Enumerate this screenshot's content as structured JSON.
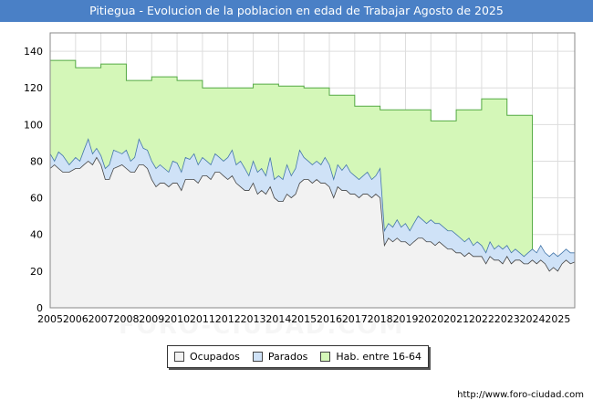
{
  "title": "Pitiegua - Evolucion de la poblacion en edad de Trabajar Agosto de 2025",
  "footer_url": "http://www.foro-ciudad.com",
  "watermark": "FORO-CIUDAD.COM",
  "colors": {
    "title_bg": "#4a80c6",
    "ocupados": "#f2f2f2",
    "parados": "#cfe2f7",
    "hab": "#d4f7b8"
  },
  "chart_data": {
    "type": "area",
    "xlim": [
      2005,
      2025.67
    ],
    "ylim": [
      0,
      150
    ],
    "yticks": [
      0,
      20,
      40,
      60,
      80,
      100,
      120,
      140
    ],
    "xticks": [
      "2005",
      "2006",
      "2007",
      "2008",
      "2009",
      "2010",
      "2011",
      "2012",
      "2013",
      "2014",
      "2015",
      "2016",
      "2017",
      "2018",
      "2019",
      "2020",
      "2021",
      "2022",
      "2023",
      "2024",
      "2025"
    ],
    "grid": true,
    "legend_position": "bottom",
    "series": [
      {
        "name": "Hab. entre 16-64",
        "color": "#d4f7b8",
        "line_color": "#55aa44",
        "points": [
          [
            2005,
            135
          ],
          [
            2006,
            131
          ],
          [
            2007,
            133
          ],
          [
            2008,
            124
          ],
          [
            2009,
            126
          ],
          [
            2010,
            124
          ],
          [
            2011,
            120
          ],
          [
            2012,
            120
          ],
          [
            2013,
            122
          ],
          [
            2014,
            121
          ],
          [
            2015,
            120
          ],
          [
            2016,
            116
          ],
          [
            2017,
            110
          ],
          [
            2018,
            108
          ],
          [
            2019,
            108
          ],
          [
            2020,
            102
          ],
          [
            2021,
            108
          ],
          [
            2022,
            114
          ],
          [
            2023,
            105
          ]
        ],
        "annual_end": 2024
      },
      {
        "name": "Parados",
        "color": "#cfe2f7",
        "line_color": "#4477aa",
        "points": [
          [
            2005,
            84
          ],
          [
            2005.17,
            80
          ],
          [
            2005.33,
            85
          ],
          [
            2005.5,
            83
          ],
          [
            2005.75,
            78
          ],
          [
            2006,
            82
          ],
          [
            2006.17,
            80
          ],
          [
            2006.33,
            86
          ],
          [
            2006.5,
            92
          ],
          [
            2006.67,
            84
          ],
          [
            2006.83,
            87
          ],
          [
            2007,
            83
          ],
          [
            2007.17,
            76
          ],
          [
            2007.33,
            78
          ],
          [
            2007.5,
            86
          ],
          [
            2007.67,
            85
          ],
          [
            2007.83,
            84
          ],
          [
            2008,
            86
          ],
          [
            2008.17,
            80
          ],
          [
            2008.33,
            82
          ],
          [
            2008.5,
            92
          ],
          [
            2008.67,
            87
          ],
          [
            2008.83,
            86
          ],
          [
            2009,
            80
          ],
          [
            2009.17,
            76
          ],
          [
            2009.33,
            78
          ],
          [
            2009.5,
            76
          ],
          [
            2009.67,
            74
          ],
          [
            2009.83,
            80
          ],
          [
            2010,
            79
          ],
          [
            2010.17,
            74
          ],
          [
            2010.33,
            82
          ],
          [
            2010.5,
            81
          ],
          [
            2010.67,
            84
          ],
          [
            2010.83,
            78
          ],
          [
            2011,
            82
          ],
          [
            2011.17,
            80
          ],
          [
            2011.33,
            78
          ],
          [
            2011.5,
            84
          ],
          [
            2011.67,
            82
          ],
          [
            2011.83,
            80
          ],
          [
            2012,
            82
          ],
          [
            2012.17,
            86
          ],
          [
            2012.33,
            78
          ],
          [
            2012.5,
            80
          ],
          [
            2012.67,
            76
          ],
          [
            2012.83,
            72
          ],
          [
            2013,
            80
          ],
          [
            2013.17,
            74
          ],
          [
            2013.33,
            76
          ],
          [
            2013.5,
            72
          ],
          [
            2013.67,
            82
          ],
          [
            2013.83,
            70
          ],
          [
            2014,
            72
          ],
          [
            2014.17,
            70
          ],
          [
            2014.33,
            78
          ],
          [
            2014.5,
            72
          ],
          [
            2014.67,
            76
          ],
          [
            2014.83,
            86
          ],
          [
            2015,
            82
          ],
          [
            2015.17,
            80
          ],
          [
            2015.33,
            78
          ],
          [
            2015.5,
            80
          ],
          [
            2015.67,
            78
          ],
          [
            2015.83,
            82
          ],
          [
            2016,
            78
          ],
          [
            2016.17,
            70
          ],
          [
            2016.33,
            78
          ],
          [
            2016.5,
            75
          ],
          [
            2016.67,
            78
          ],
          [
            2016.83,
            74
          ],
          [
            2017,
            72
          ],
          [
            2017.17,
            70
          ],
          [
            2017.33,
            72
          ],
          [
            2017.5,
            74
          ],
          [
            2017.67,
            70
          ],
          [
            2017.83,
            72
          ],
          [
            2018,
            76
          ],
          [
            2018.17,
            42
          ],
          [
            2018.33,
            46
          ],
          [
            2018.5,
            44
          ],
          [
            2018.67,
            48
          ],
          [
            2018.83,
            44
          ],
          [
            2019,
            46
          ],
          [
            2019.17,
            42
          ],
          [
            2019.33,
            46
          ],
          [
            2019.5,
            50
          ],
          [
            2019.67,
            48
          ],
          [
            2019.83,
            46
          ],
          [
            2020,
            48
          ],
          [
            2020.17,
            46
          ],
          [
            2020.33,
            46
          ],
          [
            2020.5,
            44
          ],
          [
            2020.67,
            42
          ],
          [
            2020.83,
            42
          ],
          [
            2021,
            40
          ],
          [
            2021.17,
            38
          ],
          [
            2021.33,
            36
          ],
          [
            2021.5,
            38
          ],
          [
            2021.67,
            34
          ],
          [
            2021.83,
            36
          ],
          [
            2022,
            34
          ],
          [
            2022.17,
            30
          ],
          [
            2022.33,
            36
          ],
          [
            2022.5,
            32
          ],
          [
            2022.67,
            34
          ],
          [
            2022.83,
            32
          ],
          [
            2023,
            34
          ],
          [
            2023.17,
            30
          ],
          [
            2023.33,
            32
          ],
          [
            2023.5,
            30
          ],
          [
            2023.67,
            28
          ],
          [
            2023.83,
            30
          ],
          [
            2024,
            32
          ],
          [
            2024.17,
            30
          ],
          [
            2024.33,
            34
          ],
          [
            2024.5,
            30
          ],
          [
            2024.67,
            28
          ],
          [
            2024.83,
            30
          ],
          [
            2025,
            28
          ],
          [
            2025.17,
            30
          ],
          [
            2025.33,
            32
          ],
          [
            2025.5,
            30
          ],
          [
            2025.67,
            30
          ]
        ]
      },
      {
        "name": "Ocupados",
        "color": "#f2f2f2",
        "line_color": "#444444",
        "points": [
          [
            2005,
            76
          ],
          [
            2005.17,
            78
          ],
          [
            2005.33,
            76
          ],
          [
            2005.5,
            74
          ],
          [
            2005.75,
            74
          ],
          [
            2006,
            76
          ],
          [
            2006.17,
            76
          ],
          [
            2006.33,
            78
          ],
          [
            2006.5,
            80
          ],
          [
            2006.67,
            78
          ],
          [
            2006.83,
            82
          ],
          [
            2007,
            78
          ],
          [
            2007.17,
            70
          ],
          [
            2007.33,
            70
          ],
          [
            2007.5,
            76
          ],
          [
            2007.67,
            77
          ],
          [
            2007.83,
            78
          ],
          [
            2008,
            76
          ],
          [
            2008.17,
            74
          ],
          [
            2008.33,
            74
          ],
          [
            2008.5,
            78
          ],
          [
            2008.67,
            78
          ],
          [
            2008.83,
            76
          ],
          [
            2009,
            70
          ],
          [
            2009.17,
            66
          ],
          [
            2009.33,
            68
          ],
          [
            2009.5,
            68
          ],
          [
            2009.67,
            66
          ],
          [
            2009.83,
            68
          ],
          [
            2010,
            68
          ],
          [
            2010.17,
            64
          ],
          [
            2010.33,
            70
          ],
          [
            2010.5,
            70
          ],
          [
            2010.67,
            70
          ],
          [
            2010.83,
            68
          ],
          [
            2011,
            72
          ],
          [
            2011.17,
            72
          ],
          [
            2011.33,
            70
          ],
          [
            2011.5,
            74
          ],
          [
            2011.67,
            74
          ],
          [
            2011.83,
            72
          ],
          [
            2012,
            70
          ],
          [
            2012.17,
            72
          ],
          [
            2012.33,
            68
          ],
          [
            2012.5,
            66
          ],
          [
            2012.67,
            64
          ],
          [
            2012.83,
            64
          ],
          [
            2013,
            68
          ],
          [
            2013.17,
            62
          ],
          [
            2013.33,
            64
          ],
          [
            2013.5,
            62
          ],
          [
            2013.67,
            66
          ],
          [
            2013.83,
            60
          ],
          [
            2014,
            58
          ],
          [
            2014.17,
            58
          ],
          [
            2014.33,
            62
          ],
          [
            2014.5,
            60
          ],
          [
            2014.67,
            62
          ],
          [
            2014.83,
            68
          ],
          [
            2015,
            70
          ],
          [
            2015.17,
            70
          ],
          [
            2015.33,
            68
          ],
          [
            2015.5,
            70
          ],
          [
            2015.67,
            68
          ],
          [
            2015.83,
            68
          ],
          [
            2016,
            66
          ],
          [
            2016.17,
            60
          ],
          [
            2016.33,
            66
          ],
          [
            2016.5,
            64
          ],
          [
            2016.67,
            64
          ],
          [
            2016.83,
            62
          ],
          [
            2017,
            62
          ],
          [
            2017.17,
            60
          ],
          [
            2017.33,
            62
          ],
          [
            2017.5,
            62
          ],
          [
            2017.67,
            60
          ],
          [
            2017.83,
            62
          ],
          [
            2018,
            60
          ],
          [
            2018.17,
            34
          ],
          [
            2018.33,
            38
          ],
          [
            2018.5,
            36
          ],
          [
            2018.67,
            38
          ],
          [
            2018.83,
            36
          ],
          [
            2019,
            36
          ],
          [
            2019.17,
            34
          ],
          [
            2019.33,
            36
          ],
          [
            2019.5,
            38
          ],
          [
            2019.67,
            38
          ],
          [
            2019.83,
            36
          ],
          [
            2020,
            36
          ],
          [
            2020.17,
            34
          ],
          [
            2020.33,
            36
          ],
          [
            2020.5,
            34
          ],
          [
            2020.67,
            32
          ],
          [
            2020.83,
            32
          ],
          [
            2021,
            30
          ],
          [
            2021.17,
            30
          ],
          [
            2021.33,
            28
          ],
          [
            2021.5,
            30
          ],
          [
            2021.67,
            28
          ],
          [
            2021.83,
            28
          ],
          [
            2022,
            28
          ],
          [
            2022.17,
            24
          ],
          [
            2022.33,
            28
          ],
          [
            2022.5,
            26
          ],
          [
            2022.67,
            26
          ],
          [
            2022.83,
            24
          ],
          [
            2023,
            28
          ],
          [
            2023.17,
            24
          ],
          [
            2023.33,
            26
          ],
          [
            2023.5,
            26
          ],
          [
            2023.67,
            24
          ],
          [
            2023.83,
            24
          ],
          [
            2024,
            26
          ],
          [
            2024.17,
            24
          ],
          [
            2024.33,
            26
          ],
          [
            2024.5,
            24
          ],
          [
            2024.67,
            20
          ],
          [
            2024.83,
            22
          ],
          [
            2025,
            20
          ],
          [
            2025.17,
            24
          ],
          [
            2025.33,
            26
          ],
          [
            2025.5,
            24
          ],
          [
            2025.67,
            25
          ]
        ]
      }
    ],
    "legend": [
      "Ocupados",
      "Parados",
      "Hab. entre 16-64"
    ]
  }
}
